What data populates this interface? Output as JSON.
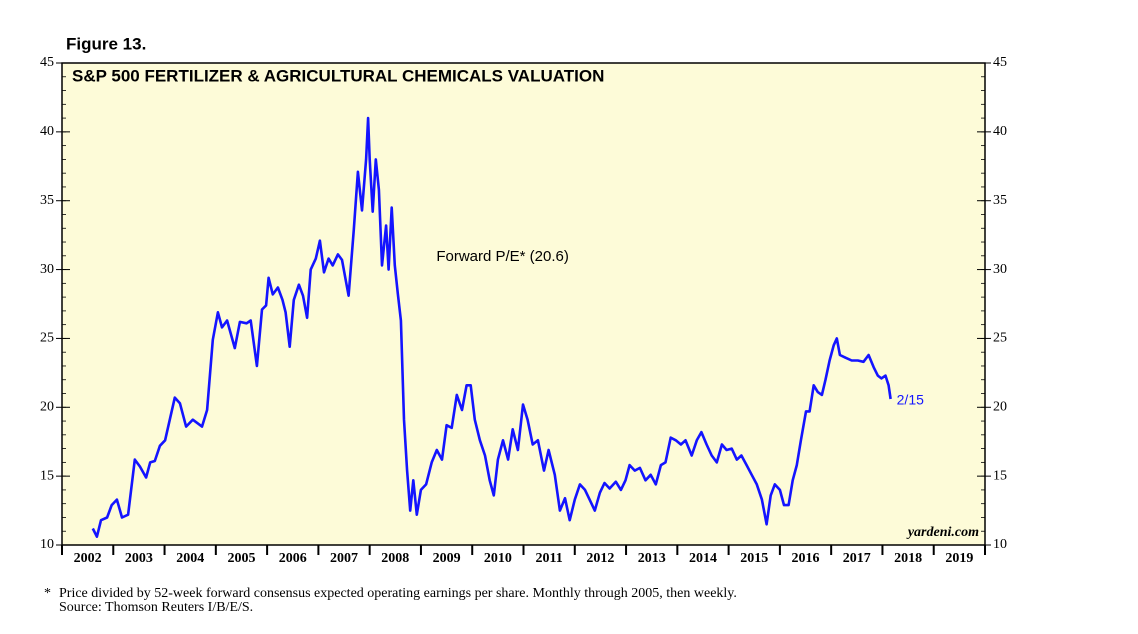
{
  "chart_data": {
    "type": "line",
    "figure_label": "Figure 13.",
    "title": "S&P 500 FERTILIZER & AGRICULTURAL CHEMICALS VALUATION",
    "end_label": "2/15",
    "watermark": "yardeni.com",
    "footnote_marker": "*",
    "footnote": "Price divided by 52-week forward consensus expected operating earnings per share. Monthly through 2005, then weekly.",
    "source": "Source: Thomson Reuters I/B/E/S.",
    "xlim": [
      2002,
      2020
    ],
    "xticks": [
      2002,
      2003,
      2004,
      2005,
      2006,
      2007,
      2008,
      2009,
      2010,
      2011,
      2012,
      2013,
      2014,
      2015,
      2016,
      2017,
      2018,
      2019
    ],
    "ylim": [
      10,
      45
    ],
    "yticks": [
      10,
      15,
      20,
      25,
      30,
      35,
      40,
      45
    ],
    "x": [
      2002.6,
      2002.68,
      2002.76,
      2002.88,
      2002.97,
      2003.07,
      2003.17,
      2003.29,
      2003.42,
      2003.52,
      2003.64,
      2003.72,
      2003.81,
      2003.91,
      2004.01,
      2004.2,
      2004.3,
      2004.42,
      2004.55,
      2004.73,
      2004.83,
      2004.94,
      2005.04,
      2005.12,
      2005.22,
      2005.37,
      2005.47,
      2005.6,
      2005.68,
      2005.8,
      2005.9,
      2005.98,
      2006.03,
      2006.11,
      2006.21,
      2006.3,
      2006.36,
      2006.44,
      2006.52,
      2006.62,
      2006.7,
      2006.78,
      2006.85,
      2006.95,
      2007.03,
      2007.11,
      2007.2,
      2007.28,
      2007.38,
      2007.46,
      2007.59,
      2007.69,
      2007.77,
      2007.85,
      2007.93,
      2007.97,
      2008.0,
      2008.06,
      2008.12,
      2008.18,
      2008.24,
      2008.32,
      2008.37,
      2008.43,
      2008.49,
      2008.55,
      2008.61,
      2008.67,
      2008.73,
      2008.79,
      2008.85,
      2008.92,
      2009.0,
      2009.1,
      2009.21,
      2009.31,
      2009.41,
      2009.5,
      2009.6,
      2009.7,
      2009.8,
      2009.89,
      2009.97,
      2010.05,
      2010.15,
      2010.25,
      2010.34,
      2010.42,
      2010.5,
      2010.6,
      2010.7,
      2010.79,
      2010.89,
      2010.99,
      2011.08,
      2011.18,
      2011.28,
      2011.4,
      2011.49,
      2011.61,
      2011.71,
      2011.81,
      2011.9,
      2012.0,
      2012.1,
      2012.2,
      2012.29,
      2012.39,
      2012.49,
      2012.58,
      2012.68,
      2012.8,
      2012.9,
      2012.99,
      2013.07,
      2013.17,
      2013.27,
      2013.38,
      2013.48,
      2013.58,
      2013.68,
      2013.77,
      2013.87,
      2013.97,
      2014.07,
      2014.16,
      2014.28,
      2014.38,
      2014.47,
      2014.57,
      2014.67,
      2014.77,
      2014.87,
      2014.96,
      2015.06,
      2015.16,
      2015.25,
      2015.35,
      2015.45,
      2015.55,
      2015.65,
      2015.74,
      2015.82,
      2015.9,
      2016.0,
      2016.08,
      2016.17,
      2016.25,
      2016.33,
      2016.41,
      2016.51,
      2016.58,
      2016.66,
      2016.74,
      2016.82,
      2016.89,
      2016.97,
      2017.05,
      2017.11,
      2017.17,
      2017.28,
      2017.4,
      2017.52,
      2017.63,
      2017.73,
      2017.83,
      2017.91,
      2017.98,
      2018.06,
      2018.12,
      2018.16
    ],
    "series": [
      {
        "name": "Forward P/E* (20.6)",
        "color": "#1414ff",
        "values": [
          11.2,
          10.6,
          11.8,
          12.0,
          12.9,
          13.3,
          12.0,
          12.2,
          16.2,
          15.7,
          14.9,
          16.0,
          16.1,
          17.2,
          17.6,
          20.7,
          20.3,
          18.6,
          19.1,
          18.6,
          19.8,
          24.9,
          26.9,
          25.8,
          26.3,
          24.3,
          26.2,
          26.1,
          26.3,
          23.0,
          27.1,
          27.4,
          29.4,
          28.2,
          28.7,
          27.8,
          26.9,
          24.4,
          27.8,
          28.9,
          28.1,
          26.5,
          30.0,
          30.8,
          32.1,
          29.8,
          30.8,
          30.3,
          31.1,
          30.7,
          28.1,
          32.9,
          37.1,
          34.3,
          38.0,
          41.0,
          38.0,
          34.2,
          38.0,
          35.8,
          30.3,
          33.2,
          30.0,
          34.5,
          30.3,
          28.2,
          26.3,
          19.1,
          15.4,
          12.5,
          14.7,
          12.2,
          14.0,
          14.4,
          16.0,
          16.9,
          16.2,
          18.7,
          18.5,
          20.9,
          19.8,
          21.6,
          21.6,
          19.1,
          17.6,
          16.5,
          14.7,
          13.6,
          16.2,
          17.6,
          16.2,
          18.4,
          16.9,
          20.2,
          19.1,
          17.3,
          17.6,
          15.4,
          16.9,
          15.1,
          12.5,
          13.4,
          11.8,
          13.3,
          14.4,
          14.0,
          13.3,
          12.5,
          13.8,
          14.5,
          14.1,
          14.6,
          14.0,
          14.7,
          15.8,
          15.4,
          15.6,
          14.7,
          15.1,
          14.4,
          15.8,
          16.0,
          17.8,
          17.6,
          17.3,
          17.6,
          16.5,
          17.6,
          18.2,
          17.3,
          16.5,
          16.0,
          17.3,
          16.9,
          17.0,
          16.2,
          16.5,
          15.8,
          15.1,
          14.4,
          13.3,
          11.5,
          13.6,
          14.4,
          14.0,
          12.9,
          12.9,
          14.7,
          15.8,
          17.6,
          19.7,
          19.7,
          21.6,
          21.1,
          20.9,
          22.0,
          23.4,
          24.5,
          25.0,
          23.8,
          23.6,
          23.4,
          23.4,
          23.3,
          23.8,
          22.9,
          22.3,
          22.1,
          22.3,
          21.6,
          20.6
        ]
      }
    ],
    "background": "#fdfbd8"
  }
}
